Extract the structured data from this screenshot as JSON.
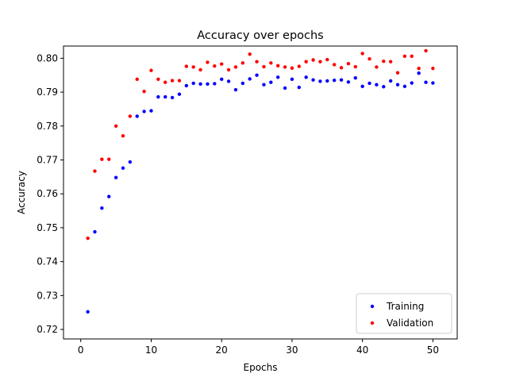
{
  "chart_data": {
    "type": "scatter",
    "title": "Accuracy over epochs",
    "xlabel": "Epochs",
    "ylabel": "Accuracy",
    "xlim": [
      -2.45,
      53.45
    ],
    "ylim": [
      0.7172,
      0.8036
    ],
    "xticks": [
      0,
      10,
      20,
      30,
      40,
      50
    ],
    "yticks": [
      0.72,
      0.73,
      0.74,
      0.75,
      0.76,
      0.77,
      0.78,
      0.79,
      0.8
    ],
    "ytick_labels": [
      "0.72",
      "0.73",
      "0.74",
      "0.75",
      "0.76",
      "0.77",
      "0.78",
      "0.79",
      "0.80"
    ],
    "grid": false,
    "legend_position": "lower-right",
    "x": [
      1,
      2,
      3,
      4,
      5,
      6,
      7,
      8,
      9,
      10,
      11,
      12,
      13,
      14,
      15,
      16,
      17,
      18,
      19,
      20,
      21,
      22,
      23,
      24,
      25,
      26,
      27,
      28,
      29,
      30,
      31,
      32,
      33,
      34,
      35,
      36,
      37,
      38,
      39,
      40,
      41,
      42,
      43,
      44,
      45,
      46,
      47,
      48,
      49,
      50
    ],
    "series": [
      {
        "name": "Training",
        "color": "#0000ff",
        "values": [
          0.7252,
          0.7488,
          0.7558,
          0.7592,
          0.7648,
          0.7676,
          0.7694,
          0.7829,
          0.7843,
          0.7845,
          0.7886,
          0.7886,
          0.7884,
          0.7894,
          0.7919,
          0.7926,
          0.7924,
          0.7924,
          0.7925,
          0.7938,
          0.7932,
          0.7907,
          0.7926,
          0.7939,
          0.795,
          0.7922,
          0.7929,
          0.7944,
          0.7912,
          0.7938,
          0.7914,
          0.7944,
          0.7936,
          0.7932,
          0.7933,
          0.7935,
          0.7936,
          0.793,
          0.7942,
          0.7917,
          0.7926,
          0.7922,
          0.7916,
          0.7933,
          0.7922,
          0.7917,
          0.7927,
          0.7956,
          0.7929,
          0.7927
        ]
      },
      {
        "name": "Validation",
        "color": "#ff0000",
        "values": [
          0.7469,
          0.7667,
          0.7702,
          0.7702,
          0.78,
          0.7771,
          0.7829,
          0.7938,
          0.7902,
          0.7964,
          0.7938,
          0.7929,
          0.7934,
          0.7934,
          0.7976,
          0.7974,
          0.7966,
          0.7988,
          0.7977,
          0.7983,
          0.7966,
          0.7974,
          0.7986,
          0.8012,
          0.799,
          0.7975,
          0.7986,
          0.7978,
          0.7974,
          0.7971,
          0.7976,
          0.799,
          0.7995,
          0.799,
          0.7996,
          0.7981,
          0.7972,
          0.7984,
          0.7975,
          0.8014,
          0.7998,
          0.7974,
          0.7991,
          0.799,
          0.7957,
          0.8006,
          0.8006,
          0.797,
          0.8022,
          0.797
        ]
      }
    ]
  }
}
